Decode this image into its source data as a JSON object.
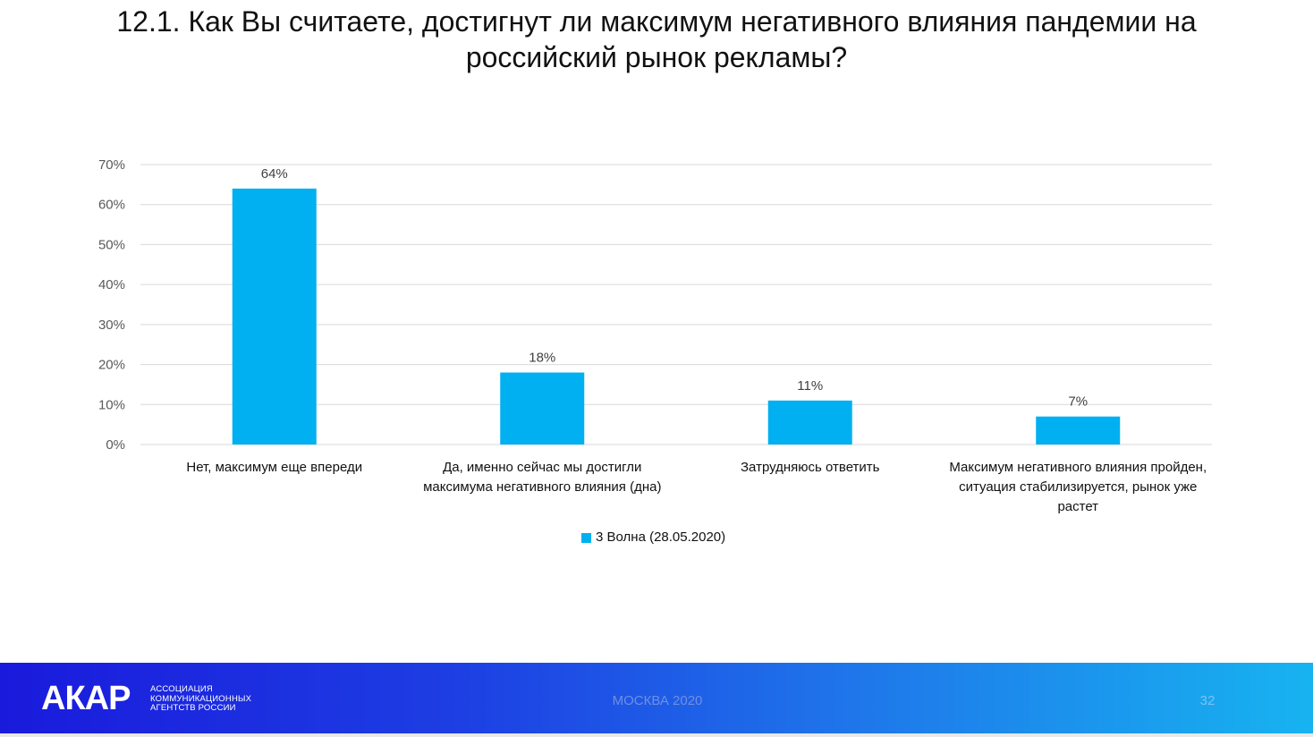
{
  "slide": {
    "title": "12.1. Как Вы считаете, достигнут ли максимум негативного влияния пандемии на российский рынок рекламы?"
  },
  "chart_data": {
    "type": "bar",
    "categories": [
      "Нет, максимум еще впереди",
      "Да, именно сейчас мы достигли максимума негативного влияния (дна)",
      "Затрудняюсь ответить",
      "Максимум негативного влияния пройден, ситуация стабилизируется, рынок уже растет"
    ],
    "series": [
      {
        "name": "3 Волна (28.05.2020)",
        "values": [
          64,
          18,
          11,
          7
        ],
        "color": "#00b0f0"
      }
    ],
    "data_labels": [
      "64%",
      "18%",
      "11%",
      "7%"
    ],
    "y_ticks": [
      "0%",
      "10%",
      "20%",
      "30%",
      "40%",
      "50%",
      "60%",
      "70%"
    ],
    "ylim": [
      0,
      70
    ],
    "grid": true,
    "legend_position": "bottom"
  },
  "footer": {
    "logo": "АКАР",
    "logo_subtitle": [
      "АССОЦИАЦИЯ",
      "КОММУНИКАЦИОННЫХ",
      "АГЕНТСТВ РОССИИ"
    ],
    "city": "МОСКВА 2020",
    "page_number": "32"
  }
}
